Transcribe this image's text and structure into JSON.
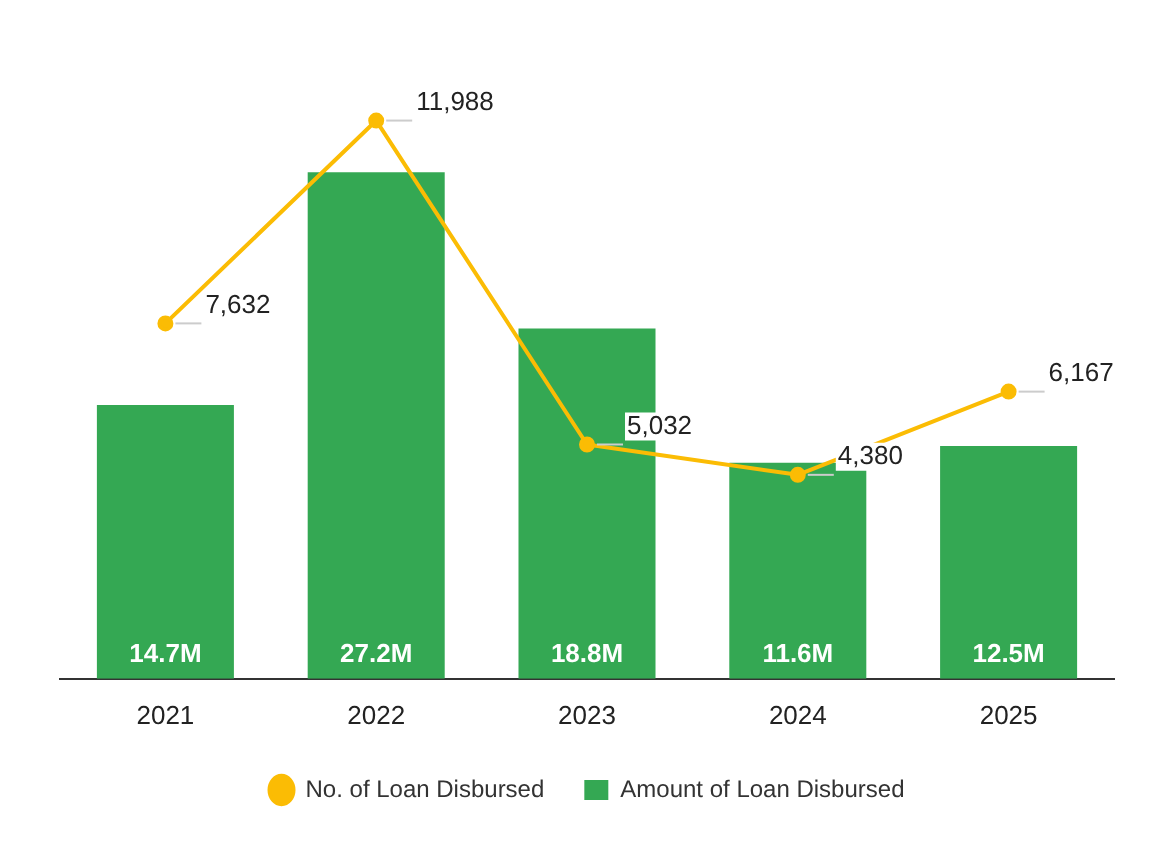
{
  "chart_data": {
    "type": "bar",
    "categories": [
      "2021",
      "2022",
      "2023",
      "2024",
      "2025"
    ],
    "series": [
      {
        "name": "No. of Loan Disbursed",
        "type": "line",
        "axis": "y2",
        "color": "#fbbc04",
        "values": [
          7632,
          11988,
          5032,
          4380,
          6167
        ],
        "value_labels": [
          "7,632",
          "11,988",
          "5,032",
          "4,380",
          "6,167"
        ]
      },
      {
        "name": "Amount of Loan Disbursed",
        "type": "bar",
        "color": "#34a853",
        "values": [
          14.7,
          27.2,
          18.8,
          11.6,
          12.5
        ],
        "value_labels": [
          "14.7M",
          "27.2M",
          "18.8M",
          "11.6M",
          "12.5M"
        ]
      }
    ],
    "legend": "bottom",
    "marker": "circle",
    "grid": false,
    "tick_labels": "x"
  }
}
